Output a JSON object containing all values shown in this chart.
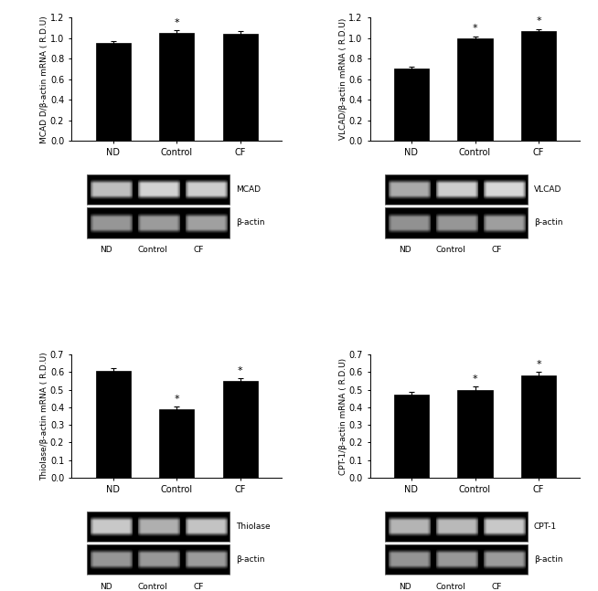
{
  "panels": [
    {
      "id": "MCAD",
      "ylabel": "MCAD D/β-actin mRNA ( R.D.U)",
      "categories": [
        "ND",
        "Control",
        "CF"
      ],
      "values": [
        0.95,
        1.055,
        1.045
      ],
      "errors": [
        0.018,
        0.02,
        0.022
      ],
      "sig": [
        false,
        true,
        false
      ],
      "ylim": [
        0.0,
        1.2
      ],
      "yticks": [
        0.0,
        0.2,
        0.4,
        0.6,
        0.8,
        1.0,
        1.2
      ],
      "gel_label": "MCAD",
      "gene_brightness": [
        190,
        210,
        205
      ],
      "actin_brightness": [
        150,
        155,
        160
      ]
    },
    {
      "id": "VLCAD",
      "ylabel": "VLCAD/β-actin mRNA ( R.D.U)",
      "categories": [
        "ND",
        "Control",
        "CF"
      ],
      "values": [
        0.7,
        1.0,
        1.07
      ],
      "errors": [
        0.018,
        0.018,
        0.02
      ],
      "sig": [
        false,
        true,
        true
      ],
      "ylim": [
        0.0,
        1.2
      ],
      "yticks": [
        0.0,
        0.2,
        0.4,
        0.6,
        0.8,
        1.0,
        1.2
      ],
      "gel_label": "VLCAD",
      "gene_brightness": [
        170,
        205,
        215
      ],
      "actin_brightness": [
        145,
        150,
        158
      ]
    },
    {
      "id": "Thiolase",
      "ylabel": "Thiolase/β-actin mRNA ( R.D.U)",
      "categories": [
        "ND",
        "Control",
        "CF"
      ],
      "values": [
        0.61,
        0.39,
        0.548
      ],
      "errors": [
        0.012,
        0.015,
        0.018
      ],
      "sig": [
        false,
        true,
        true
      ],
      "ylim": [
        0.0,
        0.7
      ],
      "yticks": [
        0.0,
        0.1,
        0.2,
        0.3,
        0.4,
        0.5,
        0.6,
        0.7
      ],
      "gel_label": "Thiolase",
      "gene_brightness": [
        200,
        175,
        195
      ],
      "actin_brightness": [
        150,
        152,
        155
      ]
    },
    {
      "id": "CPT-1",
      "ylabel": "CPT-1/β-actin mRNA ( R.D.U)",
      "categories": [
        "ND",
        "Control",
        "CF"
      ],
      "values": [
        0.47,
        0.5,
        0.58
      ],
      "errors": [
        0.02,
        0.018,
        0.02
      ],
      "sig": [
        false,
        true,
        true
      ],
      "ylim": [
        0.0,
        0.7
      ],
      "yticks": [
        0.0,
        0.1,
        0.2,
        0.3,
        0.4,
        0.5,
        0.6,
        0.7
      ],
      "gel_label": "CPT-1",
      "gene_brightness": [
        180,
        185,
        200
      ],
      "actin_brightness": [
        148,
        152,
        155
      ]
    }
  ],
  "bar_color": "#000000",
  "bar_width": 0.55,
  "tick_fontsize": 7,
  "label_fontsize": 6.5,
  "sig_marker": "*"
}
